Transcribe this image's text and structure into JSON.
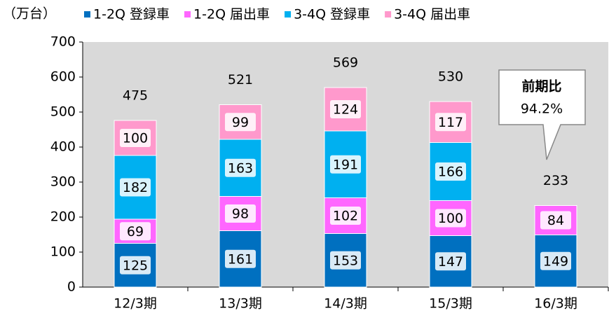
{
  "chart_data": {
    "type": "stacked_bar",
    "y_axis_label": "（万台）",
    "categories": [
      "12/3期",
      "13/3期",
      "14/3期",
      "15/3期",
      "16/3期"
    ],
    "series": [
      {
        "name": "1-2Q 登録車",
        "color": "#0070c0",
        "values": [
          125,
          161,
          153,
          147,
          149
        ]
      },
      {
        "name": "1-2Q 届出車",
        "color": "#ff66ff",
        "values": [
          69,
          98,
          102,
          100,
          84
        ]
      },
      {
        "name": "3-4Q 登録車",
        "color": "#00b0f0",
        "values": [
          182,
          163,
          191,
          166,
          null
        ]
      },
      {
        "name": "3-4Q 届出車",
        "color": "#ff99cc",
        "values": [
          100,
          99,
          124,
          117,
          null
        ]
      }
    ],
    "totals": [
      475,
      521,
      569,
      530,
      233
    ],
    "annotation": [
      "前期比",
      "94.2%"
    ],
    "ylim": [
      0,
      700
    ],
    "yticks": [
      0,
      100,
      200,
      300,
      400,
      500,
      600,
      700
    ]
  }
}
